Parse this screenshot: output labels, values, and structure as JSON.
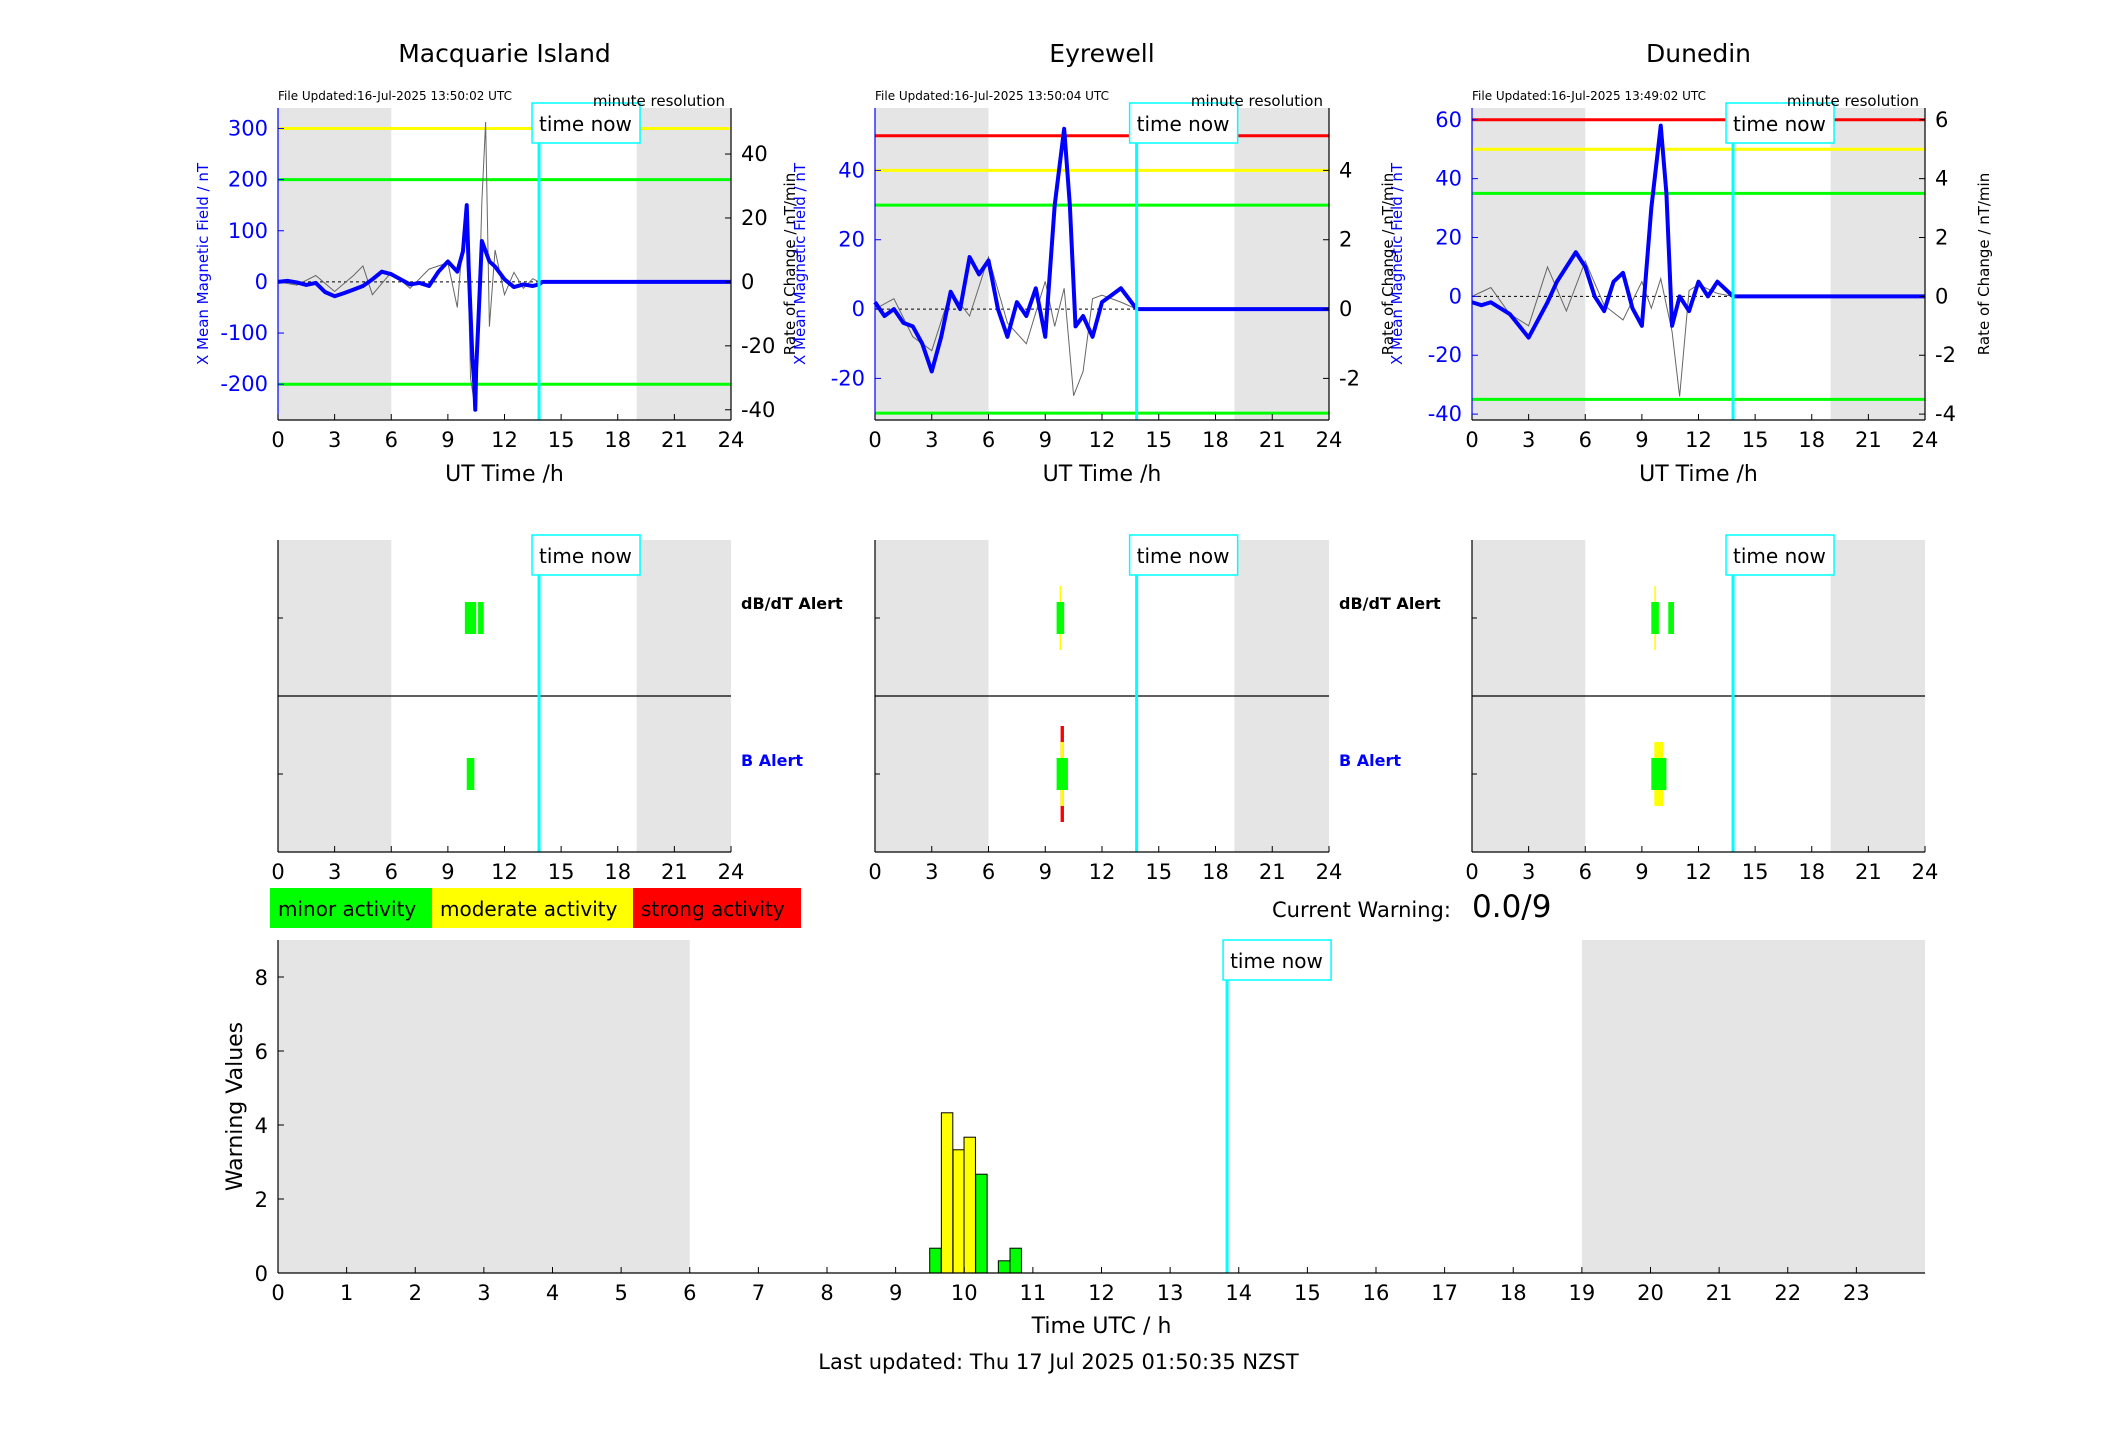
{
  "colors": {
    "night": "#e5e5e5",
    "field": "#0000ff",
    "rate": "#666666",
    "timeNow": "#00ffff",
    "green": "#00ff00",
    "yellow": "#ffff00",
    "red": "#ff0000"
  },
  "labels": {
    "time_now": "time now",
    "file_updated_prefix": "File Updated:",
    "minute_resolution": "minute resolution",
    "top_xlabel": "UT Time /h",
    "field_ylabel": "X Mean Magnetic Field / nT",
    "rate_ylabel": "Rate of Change / nT/min",
    "dbdt_alert": "dB/dT Alert",
    "b_alert": "B Alert",
    "current_warning_label": "Current Warning:",
    "current_warning_value": "0.0/9",
    "bottom_ylabel": "Warning Values",
    "bottom_xlabel": "Time UTC / h",
    "last_updated": "Last updated: Thu 17 Jul 2025 01:50:35 NZST"
  },
  "legend": [
    {
      "label": "minor activity",
      "color": "#00ff00"
    },
    {
      "label": "moderate activity",
      "color": "#ffff00"
    },
    {
      "label": "strong activity",
      "color": "#ff0000"
    }
  ],
  "chart_data": [
    {
      "type": "line",
      "station": "Macquarie Island",
      "file_updated": "16-Jul-2025 13:50:02 UTC",
      "xlim": [
        0,
        24
      ],
      "xticks": [
        0,
        3,
        6,
        9,
        12,
        15,
        18,
        21,
        24
      ],
      "ylim": [
        -270,
        340
      ],
      "yticks": [
        -200,
        -100,
        0,
        100,
        200,
        300
      ],
      "y2lim": [
        -43.2,
        54.4
      ],
      "y2ticks": [
        -40,
        -20,
        0,
        20,
        40
      ],
      "night": [
        [
          0,
          6
        ],
        [
          19,
          24
        ]
      ],
      "time_now": 13.83,
      "thresholds": [
        {
          "y": 300,
          "color": "yellow"
        },
        {
          "y": 200,
          "color": "green"
        },
        {
          "y": -200,
          "color": "green"
        }
      ],
      "field_series": [
        [
          0,
          0
        ],
        [
          0.5,
          2
        ],
        [
          1,
          -1
        ],
        [
          1.5,
          -6
        ],
        [
          2,
          -2
        ],
        [
          2.5,
          -20
        ],
        [
          3,
          -28
        ],
        [
          3.5,
          -22
        ],
        [
          4,
          -15
        ],
        [
          4.5,
          -8
        ],
        [
          5,
          5
        ],
        [
          5.5,
          20
        ],
        [
          6,
          15
        ],
        [
          6.5,
          5
        ],
        [
          7,
          -5
        ],
        [
          7.5,
          -2
        ],
        [
          8,
          -8
        ],
        [
          8.5,
          20
        ],
        [
          9,
          40
        ],
        [
          9.5,
          20
        ],
        [
          9.8,
          60
        ],
        [
          10,
          150
        ],
        [
          10.1,
          30
        ],
        [
          10.2,
          -60
        ],
        [
          10.3,
          -150
        ],
        [
          10.4,
          -200
        ],
        [
          10.45,
          -250
        ],
        [
          10.5,
          -170
        ],
        [
          10.6,
          -90
        ],
        [
          10.8,
          80
        ],
        [
          11,
          60
        ],
        [
          11.2,
          40
        ],
        [
          11.5,
          30
        ],
        [
          12,
          5
        ],
        [
          12.5,
          -10
        ],
        [
          13,
          -5
        ],
        [
          13.5,
          -8
        ],
        [
          13.83,
          -5
        ],
        [
          14,
          0
        ],
        [
          24,
          0
        ]
      ],
      "rate_series": [
        [
          0,
          0
        ],
        [
          1,
          -1
        ],
        [
          2,
          2
        ],
        [
          3,
          -3
        ],
        [
          4,
          2
        ],
        [
          4.5,
          5
        ],
        [
          5,
          -4
        ],
        [
          6,
          3
        ],
        [
          7,
          -2
        ],
        [
          8,
          4
        ],
        [
          9,
          6
        ],
        [
          9.5,
          -8
        ],
        [
          9.8,
          14
        ],
        [
          10,
          20
        ],
        [
          10.2,
          -30
        ],
        [
          10.4,
          -38
        ],
        [
          10.6,
          -18
        ],
        [
          10.8,
          25
        ],
        [
          11,
          50
        ],
        [
          11.2,
          -14
        ],
        [
          11.5,
          10
        ],
        [
          12,
          -4
        ],
        [
          12.5,
          3
        ],
        [
          13,
          -2
        ],
        [
          13.5,
          1
        ],
        [
          13.83,
          0
        ]
      ]
    },
    {
      "type": "line",
      "station": "Eyrewell",
      "file_updated": "16-Jul-2025 13:50:04 UTC",
      "xlim": [
        0,
        24
      ],
      "xticks": [
        0,
        3,
        6,
        9,
        12,
        15,
        18,
        21,
        24
      ],
      "ylim": [
        -32,
        58
      ],
      "yticks": [
        -20,
        0,
        20,
        40
      ],
      "y2lim": [
        -3.2,
        5.8
      ],
      "y2ticks": [
        -2,
        0,
        2,
        4
      ],
      "night": [
        [
          0,
          6
        ],
        [
          19,
          24
        ]
      ],
      "time_now": 13.83,
      "thresholds": [
        {
          "y": 50,
          "color": "red"
        },
        {
          "y": 40,
          "color": "yellow"
        },
        {
          "y": 30,
          "color": "green"
        },
        {
          "y": -30,
          "color": "green"
        }
      ],
      "field_series": [
        [
          0,
          2
        ],
        [
          0.5,
          -2
        ],
        [
          1,
          0
        ],
        [
          1.5,
          -4
        ],
        [
          2,
          -5
        ],
        [
          2.5,
          -10
        ],
        [
          3,
          -18
        ],
        [
          3.5,
          -8
        ],
        [
          4,
          5
        ],
        [
          4.5,
          0
        ],
        [
          5,
          15
        ],
        [
          5.5,
          10
        ],
        [
          6,
          14
        ],
        [
          6.5,
          0
        ],
        [
          7,
          -8
        ],
        [
          7.5,
          2
        ],
        [
          8,
          -2
        ],
        [
          8.5,
          6
        ],
        [
          9,
          -8
        ],
        [
          9.5,
          30
        ],
        [
          10,
          52
        ],
        [
          10.3,
          30
        ],
        [
          10.6,
          -5
        ],
        [
          11,
          -2
        ],
        [
          11.5,
          -8
        ],
        [
          12,
          2
        ],
        [
          12.5,
          4
        ],
        [
          13,
          6
        ],
        [
          13.83,
          0
        ],
        [
          24,
          0
        ]
      ],
      "rate_series": [
        [
          0,
          0
        ],
        [
          1,
          0.3
        ],
        [
          2,
          -0.8
        ],
        [
          3,
          -1.2
        ],
        [
          4,
          0.5
        ],
        [
          5,
          -0.2
        ],
        [
          6,
          1.5
        ],
        [
          7,
          -0.4
        ],
        [
          8,
          -1
        ],
        [
          9,
          0.8
        ],
        [
          9.5,
          -0.5
        ],
        [
          10,
          0.6
        ],
        [
          10.5,
          -2.5
        ],
        [
          11,
          -1.8
        ],
        [
          11.5,
          0.3
        ],
        [
          12,
          0.4
        ],
        [
          13,
          0.2
        ],
        [
          13.83,
          0
        ]
      ]
    },
    {
      "type": "line",
      "station": "Dunedin",
      "file_updated": "16-Jul-2025 13:49:02 UTC",
      "xlim": [
        0,
        24
      ],
      "xticks": [
        0,
        3,
        6,
        9,
        12,
        15,
        18,
        21,
        24
      ],
      "ylim": [
        -42,
        64
      ],
      "yticks": [
        -40,
        -20,
        0,
        20,
        40,
        60
      ],
      "y2lim": [
        -4.2,
        6.4
      ],
      "y2ticks": [
        -4,
        -2,
        0,
        2,
        4,
        6
      ],
      "night": [
        [
          0,
          6
        ],
        [
          19,
          24
        ]
      ],
      "time_now": 13.83,
      "thresholds": [
        {
          "y": 60,
          "color": "red"
        },
        {
          "y": 50,
          "color": "yellow"
        },
        {
          "y": 35,
          "color": "green"
        },
        {
          "y": -35,
          "color": "green"
        }
      ],
      "field_series": [
        [
          0,
          -2
        ],
        [
          0.5,
          -3
        ],
        [
          1,
          -2
        ],
        [
          1.5,
          -4
        ],
        [
          2,
          -6
        ],
        [
          2.5,
          -10
        ],
        [
          3,
          -14
        ],
        [
          3.5,
          -8
        ],
        [
          4,
          -2
        ],
        [
          4.5,
          5
        ],
        [
          5,
          10
        ],
        [
          5.5,
          15
        ],
        [
          6,
          10
        ],
        [
          6.5,
          0
        ],
        [
          7,
          -5
        ],
        [
          7.5,
          5
        ],
        [
          8,
          8
        ],
        [
          8.5,
          -4
        ],
        [
          9,
          -10
        ],
        [
          9.5,
          30
        ],
        [
          10,
          58
        ],
        [
          10.3,
          35
        ],
        [
          10.6,
          -10
        ],
        [
          11,
          0
        ],
        [
          11.5,
          -5
        ],
        [
          12,
          5
        ],
        [
          12.5,
          0
        ],
        [
          13,
          5
        ],
        [
          13.5,
          2
        ],
        [
          13.83,
          0
        ],
        [
          24,
          0
        ]
      ],
      "rate_series": [
        [
          0,
          0
        ],
        [
          1,
          0.3
        ],
        [
          2,
          -0.6
        ],
        [
          3,
          -1
        ],
        [
          4,
          1
        ],
        [
          5,
          -0.5
        ],
        [
          6,
          1.2
        ],
        [
          7,
          -0.3
        ],
        [
          8,
          -0.8
        ],
        [
          9,
          0.5
        ],
        [
          9.5,
          -0.4
        ],
        [
          10,
          0.6
        ],
        [
          10.6,
          -1.2
        ],
        [
          11,
          -3.4
        ],
        [
          11.5,
          0.2
        ],
        [
          12,
          0.4
        ],
        [
          13,
          0.1
        ],
        [
          13.83,
          0
        ]
      ]
    },
    {
      "type": "bar",
      "panel": "alerts",
      "station": "Macquarie Island",
      "xlim": [
        0,
        24
      ],
      "xticks": [
        0,
        3,
        6,
        9,
        12,
        15,
        18,
        21,
        24
      ],
      "night": [
        [
          0,
          6
        ],
        [
          19,
          24
        ]
      ],
      "time_now": 13.83,
      "dbdt": [
        {
          "x0": 9.9,
          "x1": 10.5,
          "level": "green"
        },
        {
          "x0": 10.6,
          "x1": 10.9,
          "level": "yellow"
        }
      ],
      "b": [
        {
          "x0": 10.0,
          "x1": 10.4,
          "level": "green"
        }
      ]
    },
    {
      "type": "bar",
      "panel": "alerts",
      "station": "Eyrewell",
      "xlim": [
        0,
        24
      ],
      "xticks": [
        0,
        3,
        6,
        9,
        12,
        15,
        18,
        21,
        24
      ],
      "night": [
        [
          0,
          6
        ],
        [
          19,
          24
        ]
      ],
      "time_now": 13.83,
      "dbdt": [
        {
          "x0": 9.6,
          "x1": 10.0,
          "level": "yellow"
        }
      ],
      "b": [
        {
          "x0": 9.6,
          "x1": 10.2,
          "level": "red"
        }
      ]
    },
    {
      "type": "bar",
      "panel": "alerts",
      "station": "Dunedin",
      "xlim": [
        0,
        24
      ],
      "xticks": [
        0,
        3,
        6,
        9,
        12,
        15,
        18,
        21,
        24
      ],
      "night": [
        [
          0,
          6
        ],
        [
          19,
          24
        ]
      ],
      "time_now": 13.83,
      "dbdt": [
        {
          "x0": 9.5,
          "x1": 9.9,
          "level": "yellow"
        },
        {
          "x0": 10.4,
          "x1": 10.7,
          "level": "green"
        }
      ],
      "b": [
        {
          "x0": 9.5,
          "x1": 10.3,
          "level": "yellow"
        }
      ]
    },
    {
      "type": "bar",
      "panel": "warning",
      "xlabel": "Time UTC / h",
      "ylabel": "Warning Values",
      "xlim": [
        0,
        24
      ],
      "xticks": [
        0,
        1,
        2,
        3,
        4,
        5,
        6,
        7,
        8,
        9,
        10,
        11,
        12,
        13,
        14,
        15,
        16,
        17,
        18,
        19,
        20,
        21,
        22,
        23
      ],
      "ylim": [
        0,
        9
      ],
      "yticks": [
        0,
        2,
        4,
        6,
        8
      ],
      "night": [
        [
          0,
          6
        ],
        [
          19,
          24
        ]
      ],
      "time_now": 13.83,
      "bars": [
        {
          "x": 9.58,
          "value": 0.67,
          "level": "green"
        },
        {
          "x": 9.75,
          "value": 4.33,
          "level": "yellow"
        },
        {
          "x": 9.92,
          "value": 3.33,
          "level": "yellow"
        },
        {
          "x": 10.08,
          "value": 3.67,
          "level": "yellow"
        },
        {
          "x": 10.25,
          "value": 2.67,
          "level": "green"
        },
        {
          "x": 10.58,
          "value": 0.33,
          "level": "green"
        },
        {
          "x": 10.75,
          "value": 0.67,
          "level": "green"
        }
      ]
    }
  ]
}
